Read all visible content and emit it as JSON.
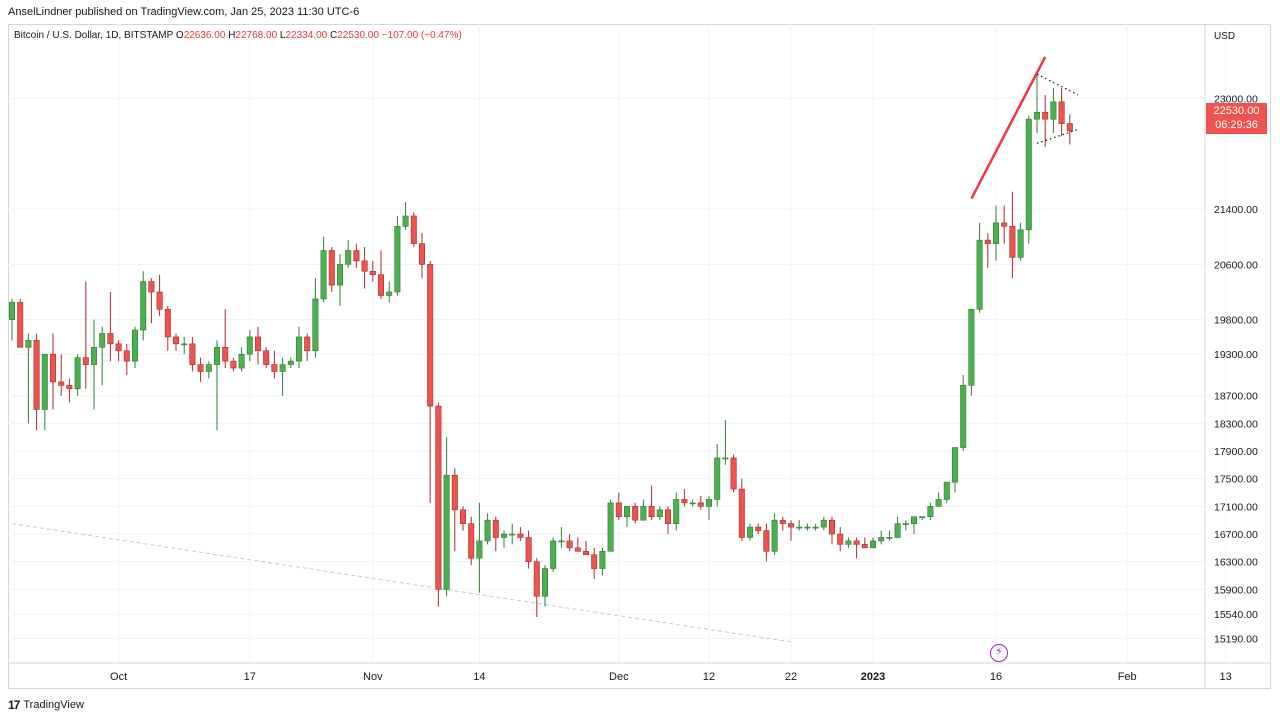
{
  "publisher": "AnselLindner published on TradingView.com, Jan 25, 2023 11:30 UTC-6",
  "symbol": {
    "name": "Bitcoin / U.S. Dollar, 1D, BITSTAMP",
    "o_label": "O",
    "o": "22636.00",
    "h_label": "H",
    "h": "22768.00",
    "l_label": "L",
    "l": "22334.00",
    "c_label": "C",
    "c": "22530.00",
    "change": "−107.00 (−0.47%)"
  },
  "currency": "USD",
  "last_price": "22530.00",
  "countdown": "06:29:36",
  "footer_brand": "TradingView",
  "colors": {
    "up": "#26a69a",
    "up_fill": "#4caf50",
    "down": "#ef5350",
    "trend": "#f23645",
    "grid": "#f0f3fa"
  },
  "chart_data": {
    "type": "candlestick",
    "title": "",
    "ylabel": "USD",
    "ylim": [
      14950,
      23700
    ],
    "y_ticks": [
      15190,
      15540,
      15900,
      16300,
      16700,
      17100,
      17500,
      17900,
      18300,
      18700,
      19300,
      19800,
      20600,
      21400,
      23000
    ],
    "x_tick_labels": [
      "Oct",
      "17",
      "Nov",
      "14",
      "Dec",
      "12",
      "22",
      "2023",
      "16",
      "Feb",
      "13"
    ],
    "x_tick_dates": [
      "2022-10-01",
      "2022-10-17",
      "2022-11-01",
      "2022-11-14",
      "2022-12-01",
      "2022-12-12",
      "2022-12-22",
      "2023-01-01",
      "2023-01-16",
      "2023-02-01",
      "2023-02-13"
    ],
    "series": [
      {
        "date": "2022-09-18",
        "o": 19800,
        "h": 20100,
        "l": 19500,
        "c": 20050
      },
      {
        "date": "2022-09-19",
        "o": 20050,
        "h": 20100,
        "l": 19400,
        "c": 19400
      },
      {
        "date": "2022-09-20",
        "o": 19400,
        "h": 19600,
        "l": 18300,
        "c": 19500
      },
      {
        "date": "2022-09-21",
        "o": 19500,
        "h": 19600,
        "l": 18200,
        "c": 18500
      },
      {
        "date": "2022-09-22",
        "o": 18500,
        "h": 19300,
        "l": 18200,
        "c": 19300
      },
      {
        "date": "2022-09-23",
        "o": 19300,
        "h": 19600,
        "l": 18500,
        "c": 18900
      },
      {
        "date": "2022-09-24",
        "o": 18900,
        "h": 19300,
        "l": 18700,
        "c": 18850
      },
      {
        "date": "2022-09-25",
        "o": 18850,
        "h": 18950,
        "l": 18600,
        "c": 18800
      },
      {
        "date": "2022-09-26",
        "o": 18800,
        "h": 19300,
        "l": 18700,
        "c": 19250
      },
      {
        "date": "2022-09-27",
        "o": 19250,
        "h": 20350,
        "l": 18800,
        "c": 19150
      },
      {
        "date": "2022-09-28",
        "o": 19150,
        "h": 19800,
        "l": 18500,
        "c": 19400
      },
      {
        "date": "2022-09-29",
        "o": 19400,
        "h": 19700,
        "l": 18850,
        "c": 19600
      },
      {
        "date": "2022-09-30",
        "o": 19600,
        "h": 20200,
        "l": 19200,
        "c": 19450
      },
      {
        "date": "2022-10-01",
        "o": 19450,
        "h": 19500,
        "l": 19200,
        "c": 19350
      },
      {
        "date": "2022-10-02",
        "o": 19350,
        "h": 19450,
        "l": 19000,
        "c": 19200
      },
      {
        "date": "2022-10-03",
        "o": 19200,
        "h": 19700,
        "l": 19100,
        "c": 19650
      },
      {
        "date": "2022-10-04",
        "o": 19650,
        "h": 20500,
        "l": 19500,
        "c": 20350
      },
      {
        "date": "2022-10-05",
        "o": 20350,
        "h": 20400,
        "l": 19750,
        "c": 20200
      },
      {
        "date": "2022-10-06",
        "o": 20200,
        "h": 20450,
        "l": 19850,
        "c": 19950
      },
      {
        "date": "2022-10-07",
        "o": 19950,
        "h": 20000,
        "l": 19350,
        "c": 19550
      },
      {
        "date": "2022-10-08",
        "o": 19550,
        "h": 19600,
        "l": 19350,
        "c": 19450
      },
      {
        "date": "2022-10-09",
        "o": 19450,
        "h": 19550,
        "l": 19300,
        "c": 19450
      },
      {
        "date": "2022-10-10",
        "o": 19450,
        "h": 19550,
        "l": 19050,
        "c": 19150
      },
      {
        "date": "2022-10-11",
        "o": 19150,
        "h": 19250,
        "l": 18900,
        "c": 19050
      },
      {
        "date": "2022-10-12",
        "o": 19050,
        "h": 19200,
        "l": 18950,
        "c": 19150
      },
      {
        "date": "2022-10-13",
        "o": 19150,
        "h": 19500,
        "l": 18200,
        "c": 19400
      },
      {
        "date": "2022-10-14",
        "o": 19400,
        "h": 19950,
        "l": 19100,
        "c": 19200
      },
      {
        "date": "2022-10-15",
        "o": 19200,
        "h": 19250,
        "l": 19050,
        "c": 19100
      },
      {
        "date": "2022-10-16",
        "o": 19100,
        "h": 19400,
        "l": 19050,
        "c": 19300
      },
      {
        "date": "2022-10-17",
        "o": 19300,
        "h": 19650,
        "l": 19200,
        "c": 19550
      },
      {
        "date": "2022-10-18",
        "o": 19550,
        "h": 19700,
        "l": 19150,
        "c": 19350
      },
      {
        "date": "2022-10-19",
        "o": 19350,
        "h": 19400,
        "l": 19100,
        "c": 19150
      },
      {
        "date": "2022-10-20",
        "o": 19150,
        "h": 19350,
        "l": 18950,
        "c": 19050
      },
      {
        "date": "2022-10-21",
        "o": 19050,
        "h": 19250,
        "l": 18700,
        "c": 19150
      },
      {
        "date": "2022-10-22",
        "o": 19150,
        "h": 19250,
        "l": 19100,
        "c": 19200
      },
      {
        "date": "2022-10-23",
        "o": 19200,
        "h": 19700,
        "l": 19100,
        "c": 19550
      },
      {
        "date": "2022-10-24",
        "o": 19550,
        "h": 19600,
        "l": 19200,
        "c": 19350
      },
      {
        "date": "2022-10-25",
        "o": 19350,
        "h": 20400,
        "l": 19250,
        "c": 20100
      },
      {
        "date": "2022-10-26",
        "o": 20100,
        "h": 21000,
        "l": 20050,
        "c": 20800
      },
      {
        "date": "2022-10-27",
        "o": 20800,
        "h": 20850,
        "l": 20200,
        "c": 20300
      },
      {
        "date": "2022-10-28",
        "o": 20300,
        "h": 20750,
        "l": 20000,
        "c": 20600
      },
      {
        "date": "2022-10-29",
        "o": 20600,
        "h": 20950,
        "l": 20550,
        "c": 20800
      },
      {
        "date": "2022-10-30",
        "o": 20800,
        "h": 20900,
        "l": 20550,
        "c": 20650
      },
      {
        "date": "2022-10-31",
        "o": 20650,
        "h": 20850,
        "l": 20250,
        "c": 20500
      },
      {
        "date": "2022-11-01",
        "o": 20500,
        "h": 20650,
        "l": 20350,
        "c": 20450
      },
      {
        "date": "2022-11-02",
        "o": 20450,
        "h": 20800,
        "l": 20100,
        "c": 20150
      },
      {
        "date": "2022-11-03",
        "o": 20150,
        "h": 20350,
        "l": 20050,
        "c": 20200
      },
      {
        "date": "2022-11-04",
        "o": 20200,
        "h": 21300,
        "l": 20150,
        "c": 21150
      },
      {
        "date": "2022-11-05",
        "o": 21150,
        "h": 21500,
        "l": 21100,
        "c": 21300
      },
      {
        "date": "2022-11-06",
        "o": 21300,
        "h": 21350,
        "l": 20850,
        "c": 20900
      },
      {
        "date": "2022-11-07",
        "o": 20900,
        "h": 21050,
        "l": 20400,
        "c": 20600
      },
      {
        "date": "2022-11-08",
        "o": 20600,
        "h": 20650,
        "l": 17150,
        "c": 18550
      },
      {
        "date": "2022-11-09",
        "o": 18550,
        "h": 18600,
        "l": 15650,
        "c": 15900
      },
      {
        "date": "2022-11-10",
        "o": 15900,
        "h": 18100,
        "l": 15800,
        "c": 17550
      },
      {
        "date": "2022-11-11",
        "o": 17550,
        "h": 17650,
        "l": 16450,
        "c": 17050
      },
      {
        "date": "2022-11-12",
        "o": 17050,
        "h": 17100,
        "l": 16750,
        "c": 16850
      },
      {
        "date": "2022-11-13",
        "o": 16850,
        "h": 16950,
        "l": 16250,
        "c": 16350
      },
      {
        "date": "2022-11-14",
        "o": 16350,
        "h": 17150,
        "l": 15850,
        "c": 16600
      },
      {
        "date": "2022-11-15",
        "o": 16600,
        "h": 17000,
        "l": 16550,
        "c": 16900
      },
      {
        "date": "2022-11-16",
        "o": 16900,
        "h": 16950,
        "l": 16450,
        "c": 16650
      },
      {
        "date": "2022-11-17",
        "o": 16650,
        "h": 16750,
        "l": 16500,
        "c": 16700
      },
      {
        "date": "2022-11-18",
        "o": 16700,
        "h": 16850,
        "l": 16550,
        "c": 16700
      },
      {
        "date": "2022-11-19",
        "o": 16700,
        "h": 16800,
        "l": 16600,
        "c": 16650
      },
      {
        "date": "2022-11-20",
        "o": 16650,
        "h": 16750,
        "l": 16200,
        "c": 16300
      },
      {
        "date": "2022-11-21",
        "o": 16300,
        "h": 16350,
        "l": 15500,
        "c": 15800
      },
      {
        "date": "2022-11-22",
        "o": 15800,
        "h": 16250,
        "l": 15650,
        "c": 16200
      },
      {
        "date": "2022-11-23",
        "o": 16200,
        "h": 16650,
        "l": 16150,
        "c": 16600
      },
      {
        "date": "2022-11-24",
        "o": 16600,
        "h": 16800,
        "l": 16500,
        "c": 16600
      },
      {
        "date": "2022-11-25",
        "o": 16600,
        "h": 16700,
        "l": 16450,
        "c": 16500
      },
      {
        "date": "2022-11-26",
        "o": 16500,
        "h": 16650,
        "l": 16450,
        "c": 16450
      },
      {
        "date": "2022-11-27",
        "o": 16450,
        "h": 16600,
        "l": 16400,
        "c": 16400
      },
      {
        "date": "2022-11-28",
        "o": 16400,
        "h": 16500,
        "l": 16050,
        "c": 16200
      },
      {
        "date": "2022-11-29",
        "o": 16200,
        "h": 16500,
        "l": 16100,
        "c": 16450
      },
      {
        "date": "2022-11-30",
        "o": 16450,
        "h": 17200,
        "l": 16450,
        "c": 17150
      },
      {
        "date": "2022-12-01",
        "o": 17150,
        "h": 17300,
        "l": 16900,
        "c": 16950
      },
      {
        "date": "2022-12-02",
        "o": 16950,
        "h": 17100,
        "l": 16800,
        "c": 17100
      },
      {
        "date": "2022-12-03",
        "o": 17100,
        "h": 17150,
        "l": 16850,
        "c": 16900
      },
      {
        "date": "2022-12-04",
        "o": 16900,
        "h": 17200,
        "l": 16900,
        "c": 17100
      },
      {
        "date": "2022-12-05",
        "o": 17100,
        "h": 17400,
        "l": 16900,
        "c": 16950
      },
      {
        "date": "2022-12-06",
        "o": 16950,
        "h": 17100,
        "l": 16900,
        "c": 17050
      },
      {
        "date": "2022-12-07",
        "o": 17050,
        "h": 17100,
        "l": 16700,
        "c": 16850
      },
      {
        "date": "2022-12-08",
        "o": 16850,
        "h": 17300,
        "l": 16750,
        "c": 17200
      },
      {
        "date": "2022-12-09",
        "o": 17200,
        "h": 17350,
        "l": 17100,
        "c": 17150
      },
      {
        "date": "2022-12-10",
        "o": 17150,
        "h": 17200,
        "l": 17100,
        "c": 17150
      },
      {
        "date": "2022-12-11",
        "o": 17150,
        "h": 17250,
        "l": 17050,
        "c": 17100
      },
      {
        "date": "2022-12-12",
        "o": 17100,
        "h": 17250,
        "l": 16900,
        "c": 17200
      },
      {
        "date": "2022-12-13",
        "o": 17200,
        "h": 18000,
        "l": 17100,
        "c": 17800
      },
      {
        "date": "2022-12-14",
        "o": 17800,
        "h": 18350,
        "l": 17700,
        "c": 17800
      },
      {
        "date": "2022-12-15",
        "o": 17800,
        "h": 17850,
        "l": 17300,
        "c": 17350
      },
      {
        "date": "2022-12-16",
        "o": 17350,
        "h": 17500,
        "l": 16600,
        "c": 16650
      },
      {
        "date": "2022-12-17",
        "o": 16650,
        "h": 16850,
        "l": 16600,
        "c": 16800
      },
      {
        "date": "2022-12-18",
        "o": 16800,
        "h": 16850,
        "l": 16700,
        "c": 16750
      },
      {
        "date": "2022-12-19",
        "o": 16750,
        "h": 16850,
        "l": 16300,
        "c": 16450
      },
      {
        "date": "2022-12-20",
        "o": 16450,
        "h": 17000,
        "l": 16400,
        "c": 16900
      },
      {
        "date": "2022-12-21",
        "o": 16900,
        "h": 16950,
        "l": 16750,
        "c": 16850
      },
      {
        "date": "2022-12-22",
        "o": 16850,
        "h": 16900,
        "l": 16600,
        "c": 16800
      },
      {
        "date": "2022-12-23",
        "o": 16800,
        "h": 16900,
        "l": 16750,
        "c": 16800
      },
      {
        "date": "2022-12-24",
        "o": 16800,
        "h": 16850,
        "l": 16750,
        "c": 16800
      },
      {
        "date": "2022-12-25",
        "o": 16800,
        "h": 16850,
        "l": 16750,
        "c": 16800
      },
      {
        "date": "2022-12-26",
        "o": 16800,
        "h": 16950,
        "l": 16750,
        "c": 16900
      },
      {
        "date": "2022-12-27",
        "o": 16900,
        "h": 16950,
        "l": 16550,
        "c": 16700
      },
      {
        "date": "2022-12-28",
        "o": 16700,
        "h": 16800,
        "l": 16450,
        "c": 16550
      },
      {
        "date": "2022-12-29",
        "o": 16550,
        "h": 16650,
        "l": 16500,
        "c": 16600
      },
      {
        "date": "2022-12-30",
        "o": 16600,
        "h": 16650,
        "l": 16350,
        "c": 16550
      },
      {
        "date": "2022-12-31",
        "o": 16550,
        "h": 16650,
        "l": 16500,
        "c": 16500
      },
      {
        "date": "2023-01-01",
        "o": 16500,
        "h": 16650,
        "l": 16500,
        "c": 16600
      },
      {
        "date": "2023-01-02",
        "o": 16600,
        "h": 16750,
        "l": 16550,
        "c": 16650
      },
      {
        "date": "2023-01-03",
        "o": 16650,
        "h": 16750,
        "l": 16600,
        "c": 16650
      },
      {
        "date": "2023-01-04",
        "o": 16650,
        "h": 16950,
        "l": 16650,
        "c": 16850
      },
      {
        "date": "2023-01-05",
        "o": 16850,
        "h": 16900,
        "l": 16750,
        "c": 16850
      },
      {
        "date": "2023-01-06",
        "o": 16850,
        "h": 16950,
        "l": 16700,
        "c": 16950
      },
      {
        "date": "2023-01-07",
        "o": 16950,
        "h": 16950,
        "l": 16900,
        "c": 16950
      },
      {
        "date": "2023-01-08",
        "o": 16950,
        "h": 17150,
        "l": 16900,
        "c": 17100
      },
      {
        "date": "2023-01-09",
        "o": 17100,
        "h": 17300,
        "l": 17100,
        "c": 17200
      },
      {
        "date": "2023-01-10",
        "o": 17200,
        "h": 17450,
        "l": 17150,
        "c": 17450
      },
      {
        "date": "2023-01-11",
        "o": 17450,
        "h": 17950,
        "l": 17300,
        "c": 17950
      },
      {
        "date": "2023-01-12",
        "o": 17950,
        "h": 19000,
        "l": 17900,
        "c": 18850
      },
      {
        "date": "2023-01-13",
        "o": 18850,
        "h": 19950,
        "l": 18700,
        "c": 19950
      },
      {
        "date": "2023-01-14",
        "o": 19950,
        "h": 21200,
        "l": 19900,
        "c": 20950
      },
      {
        "date": "2023-01-15",
        "o": 20950,
        "h": 21050,
        "l": 20550,
        "c": 20900
      },
      {
        "date": "2023-01-16",
        "o": 20900,
        "h": 21450,
        "l": 20650,
        "c": 21200
      },
      {
        "date": "2023-01-17",
        "o": 21200,
        "h": 21450,
        "l": 20900,
        "c": 21150
      },
      {
        "date": "2023-01-18",
        "o": 21150,
        "h": 21650,
        "l": 20400,
        "c": 20700
      },
      {
        "date": "2023-01-19",
        "o": 20700,
        "h": 21200,
        "l": 20650,
        "c": 21100
      },
      {
        "date": "2023-01-20",
        "o": 21100,
        "h": 22750,
        "l": 20900,
        "c": 22700
      },
      {
        "date": "2023-01-21",
        "o": 22700,
        "h": 23350,
        "l": 22500,
        "c": 22800
      },
      {
        "date": "2023-01-22",
        "o": 22800,
        "h": 23050,
        "l": 22300,
        "c": 22700
      },
      {
        "date": "2023-01-23",
        "o": 22700,
        "h": 23150,
        "l": 22500,
        "c": 22950
      },
      {
        "date": "2023-01-24",
        "o": 22950,
        "h": 23150,
        "l": 22450,
        "c": 22636
      },
      {
        "date": "2023-01-25",
        "o": 22636,
        "h": 22768,
        "l": 22334,
        "c": 22530
      }
    ],
    "drawings": [
      {
        "kind": "trend_line",
        "color": "#f23645",
        "from": {
          "date": "2023-01-13",
          "price": 21550
        },
        "to": {
          "date": "2023-01-22",
          "price": 23600
        }
      },
      {
        "kind": "dotted_line",
        "color": "#131722",
        "from": {
          "date": "2023-01-21",
          "price": 23350
        },
        "to": {
          "date": "2023-01-26",
          "price": 23050
        }
      },
      {
        "kind": "dotted_line",
        "color": "#131722",
        "from": {
          "date": "2023-01-21",
          "price": 22350
        },
        "to": {
          "date": "2023-01-26",
          "price": 22550
        }
      },
      {
        "kind": "dashed_line",
        "color": "#c8c8c8",
        "from": {
          "date": "2022-09-18",
          "price": 16850
        },
        "to": {
          "date": "2022-12-22",
          "price": 15140
        }
      }
    ]
  }
}
